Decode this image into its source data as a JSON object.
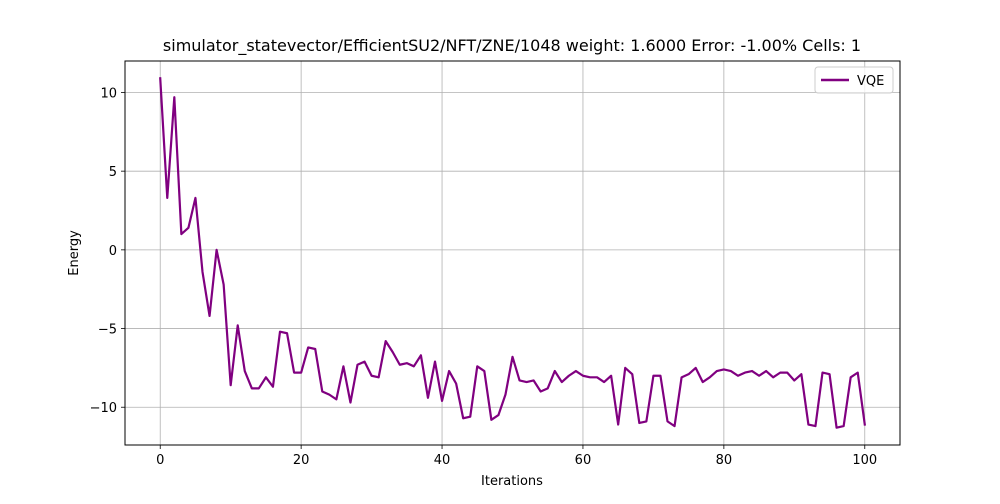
{
  "colors": {
    "series_line": "#800080",
    "grid": "#b0b0b0",
    "axes": "#000000",
    "legend_border": "#cccccc",
    "background": "#ffffff"
  },
  "chart_data": {
    "type": "line",
    "title": "simulator_statevector/EfficientSU2/NFT/ZNE/1048 weight: 1.6000 Error: -1.00% Cells: 1",
    "xlabel": "Iterations",
    "ylabel": "Energy",
    "xlim": [
      -5,
      105
    ],
    "ylim": [
      -12.4,
      12.0
    ],
    "x_ticks": [
      0,
      20,
      40,
      60,
      80,
      100
    ],
    "y_ticks": [
      -10,
      -5,
      0,
      5,
      10
    ],
    "y_tick_labels": [
      "−10",
      "−5",
      "0",
      "5",
      "10"
    ],
    "grid": true,
    "legend": {
      "position": "top-right",
      "entries": [
        "VQE"
      ]
    },
    "series": [
      {
        "name": "VQE",
        "color": "#800080",
        "x": [
          0,
          1,
          2,
          3,
          4,
          5,
          6,
          7,
          8,
          9,
          10,
          11,
          12,
          13,
          14,
          15,
          16,
          17,
          18,
          19,
          20,
          21,
          22,
          23,
          24,
          25,
          26,
          27,
          28,
          29,
          30,
          31,
          32,
          33,
          34,
          35,
          36,
          37,
          38,
          39,
          40,
          41,
          42,
          43,
          44,
          45,
          46,
          47,
          48,
          49,
          50,
          51,
          52,
          53,
          54,
          55,
          56,
          57,
          58,
          59,
          60,
          61,
          62,
          63,
          64,
          65,
          66,
          67,
          68,
          69,
          70,
          71,
          72,
          73,
          74,
          75,
          76,
          77,
          78,
          79,
          80,
          81,
          82,
          83,
          84,
          85,
          86,
          87,
          88,
          89,
          90,
          91,
          92,
          93,
          94,
          95,
          96,
          97,
          98,
          99,
          100
        ],
        "y": [
          10.9,
          3.3,
          9.7,
          1.0,
          1.4,
          3.3,
          -1.4,
          -4.2,
          0.0,
          -2.2,
          -8.6,
          -4.8,
          -7.7,
          -8.8,
          -8.8,
          -8.1,
          -8.7,
          -5.2,
          -5.3,
          -7.8,
          -7.8,
          -6.2,
          -6.3,
          -9.0,
          -9.2,
          -9.5,
          -7.4,
          -9.7,
          -7.3,
          -7.1,
          -8.0,
          -8.1,
          -5.8,
          -6.5,
          -7.3,
          -7.2,
          -7.4,
          -6.7,
          -9.4,
          -7.1,
          -9.6,
          -7.7,
          -8.5,
          -10.7,
          -10.6,
          -7.4,
          -7.7,
          -10.8,
          -10.5,
          -9.2,
          -6.8,
          -8.3,
          -8.4,
          -8.3,
          -9.0,
          -8.8,
          -7.7,
          -8.4,
          -8.0,
          -7.7,
          -8.0,
          -8.1,
          -8.1,
          -8.4,
          -8.0,
          -11.1,
          -7.5,
          -7.9,
          -11.0,
          -10.9,
          -8.0,
          -8.0,
          -10.9,
          -11.2,
          -8.1,
          -7.9,
          -7.5,
          -8.4,
          -8.1,
          -7.7,
          -7.6,
          -7.7,
          -8.0,
          -7.8,
          -7.7,
          -8.0,
          -7.7,
          -8.1,
          -7.8,
          -7.8,
          -8.3,
          -7.9,
          -11.1,
          -11.2,
          -7.8,
          -7.9,
          -11.3,
          -11.2,
          -8.1,
          -7.8,
          -11.1
        ]
      }
    ]
  }
}
